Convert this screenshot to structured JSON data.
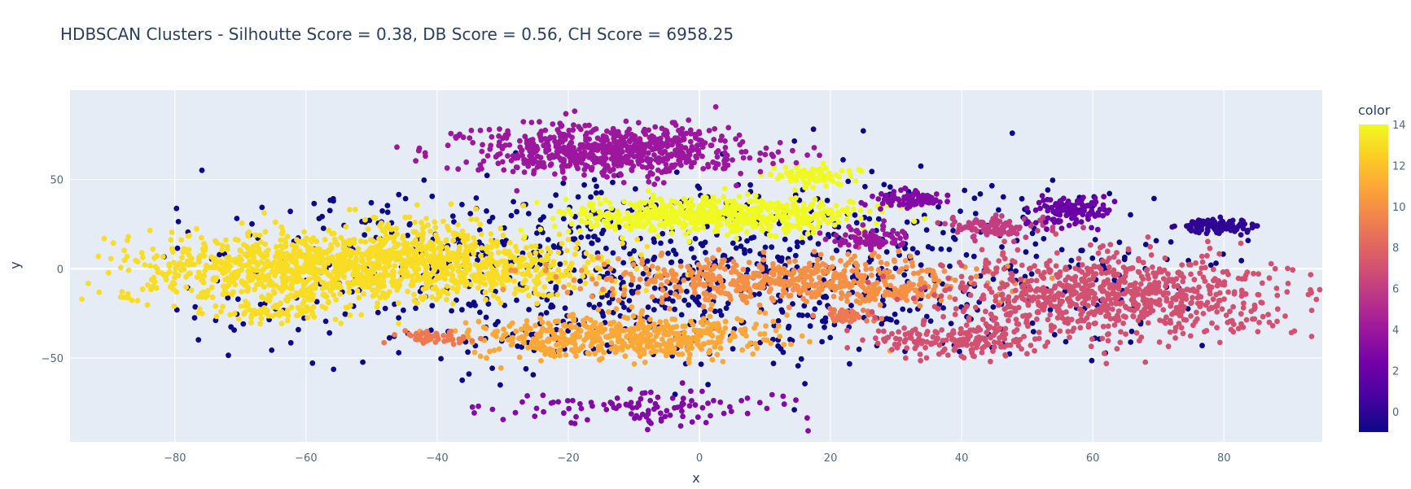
{
  "chart_data": {
    "type": "scatter",
    "title": "HDBSCAN Clusters - Silhoutte Score = 0.38, DB Score = 0.56, CH Score = 6958.25",
    "xlabel": "x",
    "ylabel": "y",
    "xlim": [
      -96,
      95
    ],
    "ylim": [
      -97,
      100
    ],
    "x_ticks": [
      -80,
      -60,
      -40,
      -20,
      0,
      20,
      40,
      60,
      80
    ],
    "x_tick_labels": [
      "−80",
      "−60",
      "−40",
      "−20",
      "0",
      "20",
      "40",
      "60",
      "80"
    ],
    "y_ticks": [
      -50,
      0,
      50
    ],
    "y_tick_labels": [
      "−50",
      "0",
      "50"
    ],
    "grid": true,
    "plot_bgcolor": "#e5ecf6",
    "grid_color": "#ffffff",
    "colorbar": {
      "title": "color",
      "range": [
        -1,
        14
      ],
      "ticks": [
        0,
        2,
        4,
        6,
        8,
        10,
        12,
        14
      ],
      "tick_labels": [
        "0",
        "2",
        "4",
        "6",
        "8",
        "10",
        "12",
        "14"
      ],
      "colorscale": [
        "#0d0887",
        "#46039f",
        "#7201a8",
        "#9c179e",
        "#bd3786",
        "#d8576b",
        "#ed7953",
        "#fb9f3a",
        "#fdca26",
        "#f0f921"
      ]
    },
    "clusters": [
      {
        "label": 13,
        "cx": -62,
        "cy": 0,
        "sx": 13,
        "sy": 10,
        "n": 850
      },
      {
        "label": 13,
        "cx": -42,
        "cy": 5,
        "sx": 8,
        "sy": 11,
        "n": 400
      },
      {
        "label": 13,
        "cx": -27,
        "cy": 0,
        "sx": 8,
        "sy": 8,
        "n": 230
      },
      {
        "label": 13,
        "cx": -66,
        "cy": -24,
        "sx": 5,
        "sy": 3,
        "n": 70
      },
      {
        "label": 11,
        "cx": -12,
        "cy": -38,
        "sx": 11,
        "sy": 6,
        "n": 520
      },
      {
        "label": 10,
        "cx": 14,
        "cy": -6,
        "sx": 15,
        "sy": 6,
        "n": 520
      },
      {
        "label": 10,
        "cx": 31,
        "cy": -13,
        "sx": 3,
        "sy": 2,
        "n": 40
      },
      {
        "label": 9,
        "cx": -40,
        "cy": -39,
        "sx": 3,
        "sy": 2,
        "n": 55
      },
      {
        "label": 9,
        "cx": 23,
        "cy": -26,
        "sx": 3,
        "sy": 2,
        "n": 45
      },
      {
        "label": 7,
        "cx": 63,
        "cy": -15,
        "sx": 13,
        "sy": 11,
        "n": 800
      },
      {
        "label": 7,
        "cx": 40,
        "cy": -40,
        "sx": 7,
        "sy": 5,
        "n": 180
      },
      {
        "label": 14,
        "cx": 2,
        "cy": 30,
        "sx": 11,
        "sy": 5,
        "n": 600
      },
      {
        "label": 14,
        "cx": 17,
        "cy": 52,
        "sx": 3,
        "sy": 3,
        "n": 80
      },
      {
        "label": 4,
        "cx": -14,
        "cy": 66,
        "sx": 11,
        "sy": 7,
        "n": 700
      },
      {
        "label": 4,
        "cx": 26,
        "cy": 17,
        "sx": 3,
        "sy": 3,
        "n": 80
      },
      {
        "label": 6,
        "cx": 44,
        "cy": 23,
        "sx": 4,
        "sy": 3,
        "n": 100
      },
      {
        "label": 3,
        "cx": 32,
        "cy": 39,
        "sx": 3,
        "sy": 2,
        "n": 80
      },
      {
        "label": 2,
        "cx": 57,
        "cy": 32,
        "sx": 3,
        "sy": 4,
        "n": 120
      },
      {
        "label": 0,
        "cx": 79,
        "cy": 24,
        "sx": 3,
        "sy": 2,
        "n": 90
      },
      {
        "label": 3,
        "cx": -10,
        "cy": -77,
        "sx": 12,
        "sy": 5,
        "n": 110
      }
    ],
    "noise": {
      "label": -1,
      "n": 1100,
      "xrange": [
        -85,
        85
      ],
      "yrange": [
        -85,
        88
      ]
    },
    "marker_size": 3.4
  }
}
